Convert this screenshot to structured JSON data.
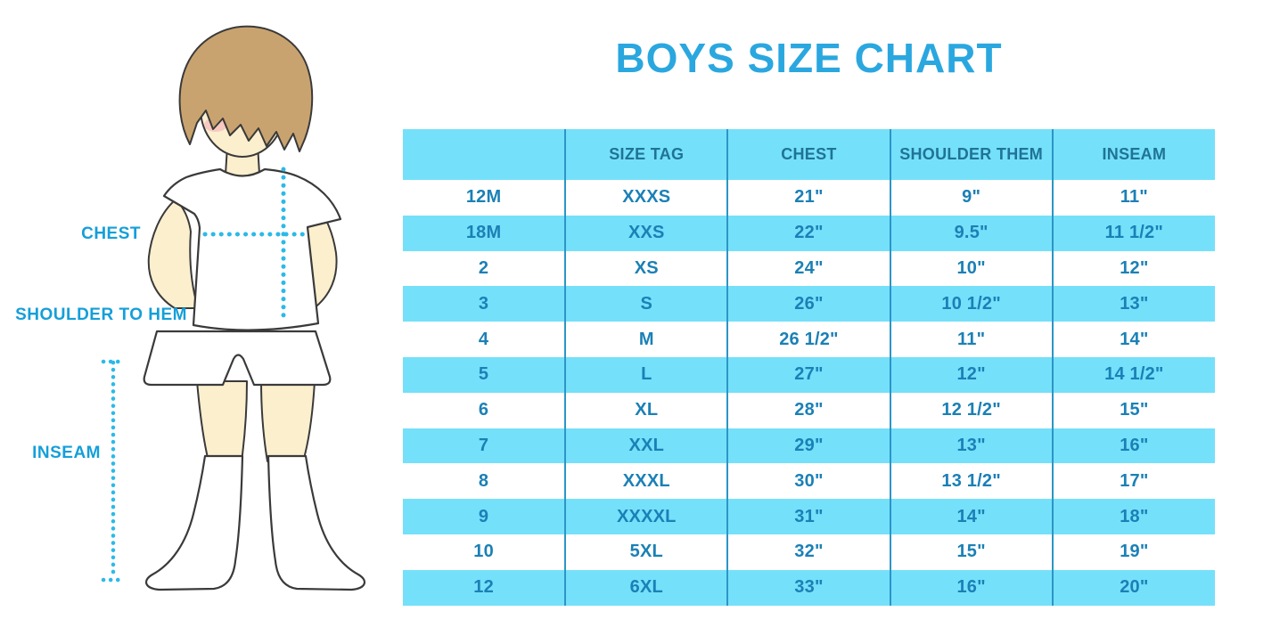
{
  "title": "BOYS SIZE CHART",
  "figure": {
    "illustration": "cartoon boy, front view, white t-shirt, white shorts, white knee socks, brown hair, blush cheeks",
    "chest_label": "CHEST",
    "shoulder_label": "SHOULDER TO HEM",
    "inseam_label": "INSEAM"
  },
  "chart_data": {
    "type": "table",
    "columns": [
      "",
      "SIZE TAG",
      "CHEST",
      "SHOULDER THEM",
      "INSEAM"
    ],
    "rows": [
      [
        "12M",
        "XXXS",
        "21\"",
        "9\"",
        "11\""
      ],
      [
        "18M",
        "XXS",
        "22\"",
        "9.5\"",
        "11 1/2\""
      ],
      [
        "2",
        "XS",
        "24\"",
        "10\"",
        "12\""
      ],
      [
        "3",
        "S",
        "26\"",
        "10 1/2\"",
        "13\""
      ],
      [
        "4",
        "M",
        "26 1/2\"",
        "11\"",
        "14\""
      ],
      [
        "5",
        "L",
        "27\"",
        "12\"",
        "14 1/2\""
      ],
      [
        "6",
        "XL",
        "28\"",
        "12 1/2\"",
        "15\""
      ],
      [
        "7",
        "XXL",
        "29\"",
        "13\"",
        "16\""
      ],
      [
        "8",
        "XXXL",
        "30\"",
        "13 1/2\"",
        "17\""
      ],
      [
        "9",
        "XXXXL",
        "31\"",
        "14\"",
        "18\""
      ],
      [
        "10",
        "5XL",
        "32\"",
        "15\"",
        "19\""
      ],
      [
        "12",
        "6XL",
        "33\"",
        "16\"",
        "20\""
      ]
    ],
    "title": "BOYS SIZE CHART",
    "grid": "vertical column separators only",
    "stripes": "rows alternate white and light blue, starting white",
    "legend_position": "none"
  },
  "colors": {
    "title_blue": "#2AA7DF",
    "label_blue": "#149FD9",
    "stripe_blue": "#75E0FA",
    "separator_blue": "#2B96C6",
    "table_text_blue": "#1B80B6",
    "header_text_blue": "#1F7396",
    "dotted_line_cyan": "#2CB9E8",
    "skin": "#FBEFCE",
    "hair_brown": "#C9A36F",
    "blush_pink": "#F4A9B8"
  }
}
